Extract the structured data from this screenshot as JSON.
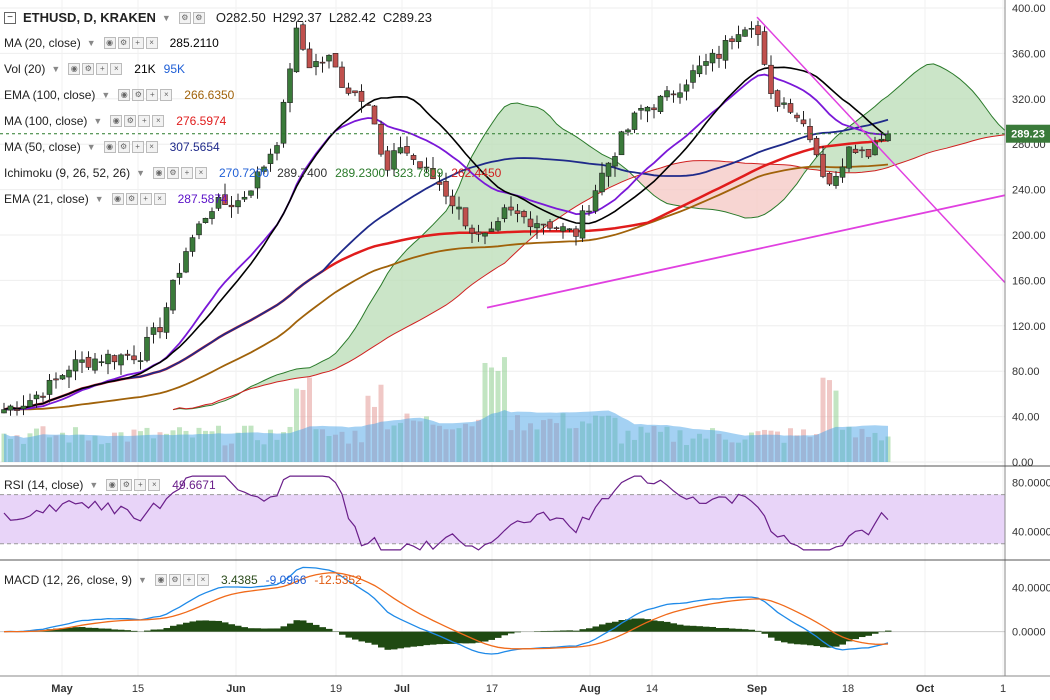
{
  "header": {
    "symbol": "ETHUSD, D, KRAKEN",
    "o": "O282.50",
    "h": "H292.37",
    "l": "L282.42",
    "c": "C289.23"
  },
  "indicators": [
    {
      "label": "MA (20, close)",
      "values": [
        "285.2110"
      ],
      "colors": [
        "#000000"
      ]
    },
    {
      "label": "Vol (20)",
      "values": [
        "21K",
        "95K"
      ],
      "colors": [
        "#000000",
        "#1f5fd6"
      ]
    },
    {
      "label": "EMA (100, close)",
      "values": [
        "266.6350"
      ],
      "colors": [
        "#a0620a"
      ]
    },
    {
      "label": "MA (100, close)",
      "values": [
        "276.5974"
      ],
      "colors": [
        "#e01c1c"
      ]
    },
    {
      "label": "MA (50, close)",
      "values": [
        "307.5654"
      ],
      "colors": [
        "#1f2a8a"
      ]
    },
    {
      "label": "Ichimoku (9, 26, 52, 26)",
      "values": [
        "270.7200",
        "289.7400",
        "289.2300",
        "323.7809",
        "262.4450"
      ],
      "colors": [
        "#1f5fd6",
        "#333333",
        "#2a7a2a",
        "#2a7a2a",
        "#d02020"
      ]
    },
    {
      "label": "EMA (21, close)",
      "values": [
        "287.5874"
      ],
      "colors": [
        "#5a10c8"
      ]
    }
  ],
  "rsi": {
    "label": "RSI (14, close)",
    "value": "49.6671"
  },
  "macd": {
    "label": "MACD (12, 26, close, 9)",
    "values": [
      "3.4385",
      "-9.0966",
      "-12.5352"
    ],
    "colors": [
      "#2a4a1a",
      "#1f5fd6",
      "#e05a10"
    ]
  },
  "price_label": "289.23",
  "colors": {
    "up": "#3a7a3a",
    "down": "#c0504d",
    "cloud_green": "#b9dcb6",
    "cloud_red": "#f4c7c3",
    "rsi_band": "#e8d4f8",
    "rsi_line": "#6a1f8a",
    "trendline": "#e040e0"
  },
  "chart_data": {
    "type": "line",
    "title": "ETHUSD, D, KRAKEN",
    "price_axis": {
      "ticks": [
        "400.00",
        "360.00",
        "320.00",
        "280.00",
        "240.00",
        "200.00",
        "160.00",
        "120.00",
        "80.00",
        "40.00",
        "0.00"
      ],
      "range": [
        0,
        400
      ]
    },
    "rsi_axis": {
      "ticks": [
        "80.0000",
        "40.0000"
      ],
      "range": [
        20,
        90
      ]
    },
    "macd_axis": {
      "ticks": [
        "40.0000",
        "0.0000"
      ],
      "range": [
        -40,
        62
      ]
    },
    "x_ticks": [
      "May",
      "15",
      "Jun",
      "19",
      "Jul",
      "17",
      "Aug",
      "14",
      "Sep",
      "18",
      "Oct",
      "1"
    ],
    "close_series_anchors": [
      [
        0,
        45
      ],
      [
        30,
        55
      ],
      [
        55,
        70
      ],
      [
        70,
        85
      ],
      [
        100,
        92
      ],
      [
        140,
        95
      ],
      [
        160,
        120
      ],
      [
        185,
        185
      ],
      [
        210,
        225
      ],
      [
        240,
        230
      ],
      [
        260,
        255
      ],
      [
        280,
        290
      ],
      [
        295,
        380
      ],
      [
        310,
        350
      ],
      [
        330,
        355
      ],
      [
        345,
        330
      ],
      [
        370,
        320
      ],
      [
        385,
        250
      ],
      [
        400,
        280
      ],
      [
        420,
        260
      ],
      [
        440,
        245
      ],
      [
        460,
        220
      ],
      [
        480,
        195
      ],
      [
        495,
        200
      ],
      [
        505,
        220
      ],
      [
        525,
        215
      ],
      [
        550,
        210
      ],
      [
        575,
        200
      ],
      [
        600,
        250
      ],
      [
        615,
        275
      ],
      [
        640,
        310
      ],
      [
        665,
        320
      ],
      [
        690,
        340
      ],
      [
        720,
        360
      ],
      [
        740,
        385
      ],
      [
        755,
        390
      ],
      [
        770,
        320
      ],
      [
        790,
        315
      ],
      [
        810,
        290
      ],
      [
        825,
        250
      ],
      [
        835,
        245
      ],
      [
        850,
        285
      ],
      [
        865,
        270
      ],
      [
        880,
        290
      ],
      [
        890,
        289
      ]
    ],
    "volume_peaks": [
      [
        300,
        95000
      ],
      [
        375,
        75000
      ],
      [
        490,
        110000
      ],
      [
        500,
        100000
      ],
      [
        830,
        95000
      ]
    ],
    "rsi_latest": 49.6671,
    "macd_latest": [
      3.4385,
      -9.0966,
      -12.5352
    ],
    "series_last_values": {
      "MA20": 285.211,
      "EMA100": 266.635,
      "MA100": 276.5974,
      "MA50": 307.5654,
      "EMA21": 287.5874
    }
  }
}
